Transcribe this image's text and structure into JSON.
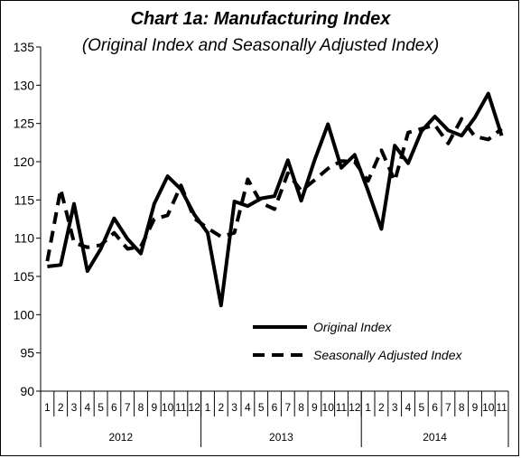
{
  "chart_data": {
    "type": "line",
    "title": "Chart 1a: Manufacturing Index",
    "subtitle": "(Original Index and Seasonally Adjusted Index)",
    "xlabel": "",
    "ylabel": "",
    "ylim": [
      90,
      135
    ],
    "yticks": [
      "90",
      "95",
      "100",
      "105",
      "110",
      "115",
      "120",
      "125",
      "130",
      "135"
    ],
    "x": [
      "1",
      "2",
      "3",
      "4",
      "5",
      "6",
      "7",
      "8",
      "9",
      "10",
      "11",
      "12",
      "1",
      "2",
      "3",
      "4",
      "5",
      "6",
      "7",
      "8",
      "9",
      "10",
      "11",
      "12",
      "1",
      "2",
      "3",
      "4",
      "5",
      "6",
      "7",
      "8",
      "9",
      "10",
      "11"
    ],
    "years": [
      {
        "label": "2012",
        "months": 12
      },
      {
        "label": "2013",
        "months": 12
      },
      {
        "label": "2014",
        "months": 11
      }
    ],
    "series": [
      {
        "name": "Original Index",
        "style": "solid",
        "values": [
          106.3,
          106.5,
          114.5,
          105.7,
          108.6,
          112.6,
          109.9,
          108.0,
          114.5,
          118.1,
          116.4,
          113.1,
          110.7,
          101.2,
          114.8,
          114.2,
          115.2,
          115.5,
          120.2,
          114.9,
          120.2,
          124.9,
          119.2,
          120.9,
          116.2,
          111.2,
          122.1,
          119.8,
          124.0,
          125.9,
          124.1,
          123.4,
          125.8,
          128.9,
          123.4
        ]
      },
      {
        "name": "Seasonally Adjusted Index",
        "style": "dashed",
        "values": [
          107.0,
          116.4,
          109.4,
          108.8,
          109.1,
          110.7,
          108.6,
          108.9,
          112.5,
          113.0,
          116.9,
          112.6,
          111.3,
          110.2,
          110.7,
          117.7,
          114.6,
          113.8,
          118.5,
          116.2,
          117.6,
          119.1,
          120.1,
          120.0,
          117.5,
          121.5,
          117.5,
          123.8,
          124.3,
          124.8,
          122.4,
          125.6,
          123.3,
          122.9,
          124.3
        ]
      }
    ],
    "legend": "lower-right",
    "grid": false
  },
  "colors": {
    "line": "#000000",
    "background": "#ffffff"
  }
}
